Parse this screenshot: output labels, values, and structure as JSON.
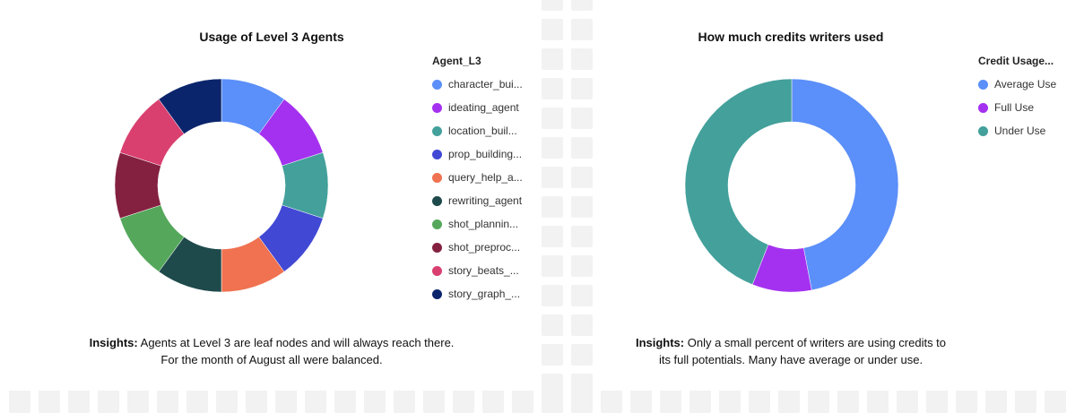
{
  "charts": [
    {
      "title": "Usage of Level 3 Agents",
      "legend_title": "Agent_L3",
      "insight_label": "Insights:",
      "insight_line1": "Agents at Level 3 are leaf nodes and will always reach there.",
      "insight_line2": "For the month of August all were balanced."
    },
    {
      "title": "How much credits writers used",
      "legend_title": "Credit Usage...",
      "insight_label": "Insights:",
      "insight_line1": "Only a small percent of writers are using credits to",
      "insight_line2": "its full potentials. Many have average or under use."
    }
  ],
  "chart_data": [
    {
      "type": "pie",
      "donut": true,
      "title": "Usage of Level 3 Agents",
      "legend_title": "Agent_L3",
      "legend_position": "right",
      "categories": [
        "character_bui...",
        "ideating_agent",
        "location_buil...",
        "prop_building...",
        "query_help_a...",
        "rewriting_agent",
        "shot_plannin...",
        "shot_preproc...",
        "story_beats_...",
        "story_graph_..."
      ],
      "values": [
        10,
        10,
        10,
        10,
        10,
        10,
        10,
        10,
        10,
        10
      ],
      "colors": [
        "#5b8ff9",
        "#a431f0",
        "#43a09b",
        "#4148d4",
        "#f07250",
        "#1f4a4c",
        "#55a85b",
        "#842140",
        "#d94070",
        "#0b256c"
      ]
    },
    {
      "type": "pie",
      "donut": true,
      "title": "How much credits writers used",
      "legend_title": "Credit Usage...",
      "legend_position": "right",
      "categories": [
        "Average Use",
        "Full Use",
        "Under Use"
      ],
      "values": [
        47,
        9,
        44
      ],
      "colors": [
        "#5b8ff9",
        "#a431f0",
        "#43a09b"
      ]
    }
  ]
}
